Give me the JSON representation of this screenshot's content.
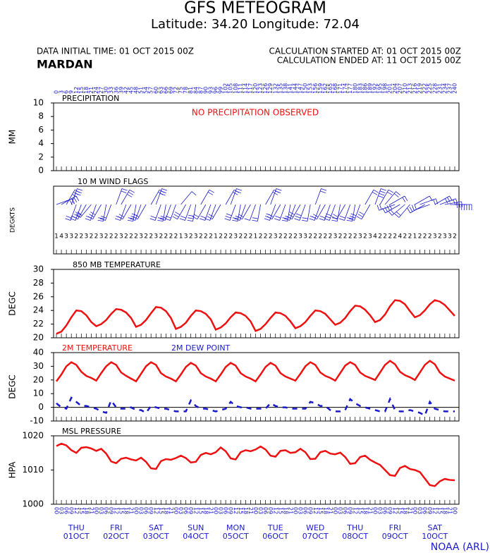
{
  "header": {
    "title": "GFS METEOGRAM",
    "subtitle": "Latitude: 34.20 Longitude:  72.04",
    "initial_time": "DATA INITIAL TIME: 01 OCT 2015 00Z",
    "station": "MARDAN",
    "calc_started": "CALCULATION STARTED AT: 01 OCT 2015 00Z",
    "calc_ended": "CALCULATION ENDED AT: 11 OCT 2015 00Z"
  },
  "footer": "NOAA (ARL)",
  "time_axis": {
    "hours": [
      0,
      3,
      6,
      9,
      12,
      15,
      18,
      21,
      24,
      27,
      30,
      33,
      36,
      39,
      42,
      45,
      48,
      51,
      54,
      57,
      60,
      63,
      66,
      69,
      72,
      75,
      78,
      81,
      84,
      87,
      90,
      93,
      96,
      99,
      102,
      105,
      108,
      111,
      114,
      117,
      120,
      123,
      126,
      129,
      132,
      135,
      138,
      141,
      144,
      147,
      150,
      153,
      156,
      159,
      162,
      165,
      168,
      171,
      174,
      177,
      180,
      183,
      186,
      189,
      192,
      195,
      198,
      201,
      204,
      207,
      210,
      213,
      216,
      219,
      222,
      225,
      228,
      231,
      234,
      237,
      240
    ],
    "utc_hours": [
      "00",
      "03",
      "06",
      "09",
      "12",
      "15",
      "18",
      "21",
      "00",
      "03",
      "06",
      "09",
      "12",
      "15",
      "18",
      "21",
      "00",
      "03",
      "06",
      "09",
      "12",
      "15",
      "18",
      "21",
      "00",
      "03",
      "06",
      "09",
      "12",
      "15",
      "18",
      "21",
      "00",
      "03",
      "06",
      "09",
      "12",
      "15",
      "18",
      "21",
      "00",
      "03",
      "06",
      "09",
      "12",
      "15",
      "18",
      "21",
      "00",
      "03",
      "06",
      "09",
      "12",
      "15",
      "18",
      "21",
      "00",
      "03",
      "06",
      "09",
      "12",
      "15",
      "18",
      "21",
      "00",
      "03",
      "06",
      "09",
      "12",
      "15",
      "18",
      "21",
      "00",
      "03",
      "06",
      "09",
      "12",
      "15",
      "18",
      "21",
      "00"
    ],
    "day_names": [
      "THU",
      "FRI",
      "SAT",
      "SUN",
      "MON",
      "TUE",
      "WED",
      "THU",
      "FRI",
      "SAT"
    ],
    "day_dates": [
      "01OCT",
      "02OCT",
      "03OCT",
      "04OCT",
      "05OCT",
      "06OCT",
      "07OCT",
      "08OCT",
      "09OCT",
      "10OCT"
    ]
  },
  "chart_data": [
    {
      "type": "bar",
      "title": "PRECIPITATION",
      "ylabel": "MM",
      "annotation": "NO PRECIPITATION OBSERVED",
      "annotation_color": "#ee1111",
      "ylim": [
        0,
        10
      ],
      "yticks": [
        0,
        2,
        4,
        6,
        8,
        10
      ]
    },
    {
      "type": "wind_barb",
      "title": "10 M  WIND FLAGS",
      "ylabel": "DEGKTS",
      "color": "#1a1acc",
      "directions": [
        70,
        60,
        30,
        20,
        200,
        200,
        210,
        220,
        200,
        210,
        190,
        200,
        20,
        30,
        200,
        210,
        190,
        200,
        210,
        30,
        20,
        200,
        190,
        200,
        200,
        40,
        210,
        200,
        190,
        30,
        210,
        200,
        200,
        210,
        30,
        20,
        200,
        190,
        200,
        210,
        200,
        190,
        30,
        20,
        200,
        210,
        200,
        190,
        200,
        210,
        200,
        190,
        20,
        200,
        210,
        200,
        200,
        190,
        210,
        200,
        190,
        200,
        30,
        210,
        20,
        30,
        40,
        60,
        250,
        240,
        230,
        220,
        60,
        70,
        240,
        250,
        60,
        70,
        80,
        90,
        90
      ],
      "speeds": [
        1,
        4,
        3,
        3,
        2,
        2,
        3,
        2,
        2,
        3,
        2,
        2,
        2,
        3,
        2,
        2,
        2,
        3,
        2,
        2,
        3,
        2,
        2,
        2,
        2,
        1,
        3,
        2,
        3,
        2,
        2,
        2,
        1,
        2,
        2,
        2,
        3,
        2,
        2,
        2,
        1,
        2,
        2,
        2,
        3,
        2,
        2,
        2,
        2,
        3,
        3,
        2,
        2,
        2,
        2,
        2,
        3,
        2,
        2,
        2,
        2,
        3,
        2,
        3,
        4,
        2,
        2,
        2,
        2,
        4,
        2,
        2,
        1,
        2,
        2,
        2,
        3,
        2,
        3,
        3,
        2
      ]
    },
    {
      "type": "line",
      "title": "850 MB  TEMPERATURE",
      "ylabel": "DEGC",
      "ylim": [
        20,
        30
      ],
      "yticks": [
        20,
        22,
        24,
        26,
        28,
        30
      ],
      "series": [
        {
          "color": "#ee1111",
          "values": [
            20.6,
            20.9,
            21.8,
            23.0,
            24.0,
            23.9,
            23.3,
            22.3,
            21.7,
            22.0,
            22.6,
            23.5,
            24.2,
            24.1,
            23.7,
            22.9,
            21.6,
            21.9,
            22.6,
            23.6,
            24.5,
            24.4,
            23.9,
            22.9,
            21.3,
            21.6,
            22.2,
            23.2,
            24.0,
            23.9,
            23.5,
            22.7,
            21.2,
            21.5,
            22.1,
            23.0,
            23.7,
            23.6,
            23.2,
            22.4,
            21.0,
            21.3,
            22.0,
            22.9,
            23.7,
            23.6,
            23.2,
            22.4,
            21.4,
            21.7,
            22.3,
            23.2,
            24.0,
            23.9,
            23.5,
            22.7,
            21.9,
            22.2,
            22.9,
            23.9,
            24.7,
            24.6,
            24.1,
            23.3,
            22.3,
            22.6,
            23.4,
            24.6,
            25.5,
            25.4,
            24.9,
            23.9,
            23.0,
            23.3,
            24.0,
            24.9,
            25.5,
            25.3,
            24.8,
            24.0,
            23.2
          ]
        }
      ]
    },
    {
      "type": "line",
      "ylabel": "DEGC",
      "ylim": [
        -10,
        40
      ],
      "yticks": [
        -10,
        0,
        10,
        20,
        30,
        40
      ],
      "zero_line": true,
      "series": [
        {
          "name": "2M TEMPERATURE",
          "color": "#ee1111",
          "style": "solid",
          "values": [
            19,
            24,
            30,
            33,
            31,
            26,
            23,
            21.5,
            19.5,
            25,
            30,
            33,
            31,
            25.5,
            23,
            21,
            19,
            24.5,
            30,
            33,
            31,
            25,
            22.5,
            21,
            19,
            24,
            29.5,
            32.5,
            30.5,
            25,
            22.5,
            21,
            19,
            24,
            29.5,
            32.5,
            30.5,
            25,
            22.5,
            21,
            19,
            24,
            29.5,
            32.5,
            30.5,
            25,
            22.5,
            21,
            19.5,
            24.5,
            30,
            33,
            31,
            25.5,
            23,
            21.5,
            19.5,
            25,
            30.5,
            33,
            31,
            25.5,
            23,
            21.5,
            20,
            25.5,
            31,
            34,
            31.5,
            26,
            23.5,
            22,
            20,
            25.5,
            31,
            34,
            31.5,
            25.5,
            22.5,
            21,
            19.5
          ]
        },
        {
          "name": "2M   DEW POINT",
          "color": "#1a1acc",
          "style": "dashed",
          "values": [
            3,
            0,
            -1,
            7,
            4,
            1,
            1,
            0,
            -1,
            -3,
            -4,
            5,
            0,
            -1,
            -1,
            0,
            -2,
            -2,
            -4,
            1,
            0,
            -1,
            -1,
            -2,
            -3,
            -3,
            -3,
            5,
            1,
            -1,
            -1,
            -2,
            -3,
            -2,
            -1,
            4,
            1,
            0,
            0,
            -1,
            -1,
            -1,
            -1,
            3,
            1,
            0,
            0,
            -1,
            -1,
            -1,
            -1,
            4,
            3,
            1,
            1,
            -2,
            -3,
            -3,
            -2,
            6,
            3,
            1,
            0,
            -1,
            -2,
            -3,
            -3,
            6,
            -2,
            -3,
            -3,
            -2,
            -3,
            -4,
            -6,
            4,
            -1,
            -2,
            -3,
            -3,
            -3
          ]
        }
      ]
    },
    {
      "type": "line",
      "title": "MSL PRESSURE",
      "ylabel": "HPA",
      "ylim": [
        1000,
        1020
      ],
      "yticks": [
        1000,
        1010,
        1020
      ],
      "series": [
        {
          "color": "#ee1111",
          "values": [
            1017,
            1017.7,
            1017.2,
            1015.8,
            1015,
            1016.5,
            1016.7,
            1016.3,
            1015.6,
            1016.2,
            1014.8,
            1012.5,
            1012,
            1013.3,
            1013.6,
            1013.1,
            1012.8,
            1013.6,
            1012.4,
            1010.5,
            1010.3,
            1012.6,
            1013.2,
            1013.0,
            1013.5,
            1014.2,
            1013.5,
            1012.2,
            1012.4,
            1014.4,
            1015.0,
            1014.6,
            1015.2,
            1016.6,
            1015.5,
            1013.4,
            1013.1,
            1015.2,
            1015.8,
            1015.5,
            1016.0,
            1016.9,
            1016.0,
            1014.2,
            1013.9,
            1015.6,
            1015.8,
            1015.0,
            1015.2,
            1016.2,
            1015.2,
            1013.2,
            1013.3,
            1015.2,
            1015.6,
            1014.8,
            1014.6,
            1015.1,
            1013.8,
            1011.8,
            1012.0,
            1013.8,
            1014.2,
            1013.0,
            1012.2,
            1011.5,
            1010.0,
            1008.5,
            1008.3,
            1010.6,
            1011.2,
            1010.3,
            1010.0,
            1009.4,
            1007.5,
            1005.6,
            1005.3,
            1006.7,
            1007.4,
            1007.1,
            1007.0
          ]
        }
      ]
    }
  ]
}
